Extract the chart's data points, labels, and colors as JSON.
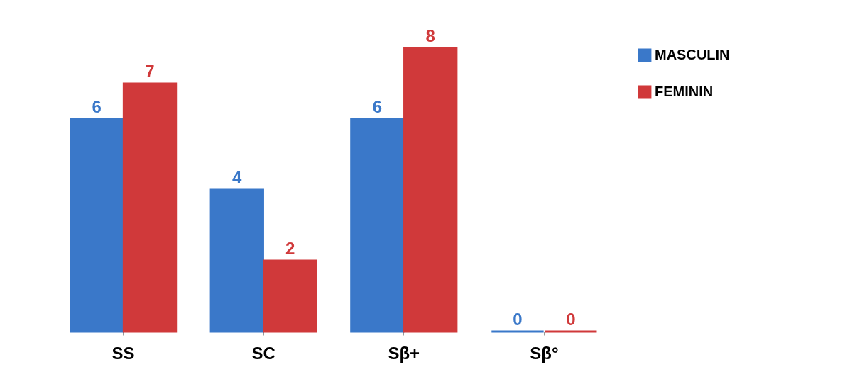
{
  "chart_data": {
    "type": "bar",
    "categories": [
      "SS",
      "SC",
      "Sβ+",
      "Sβ°"
    ],
    "series": [
      {
        "name": "MASCULIN",
        "color": "#3a78c9",
        "values": [
          6,
          4,
          6,
          0
        ]
      },
      {
        "name": "FEMININ",
        "color": "#d0393a",
        "values": [
          7,
          2,
          8,
          0
        ]
      }
    ],
    "data_labels": true,
    "legend": "right",
    "grid": false
  }
}
